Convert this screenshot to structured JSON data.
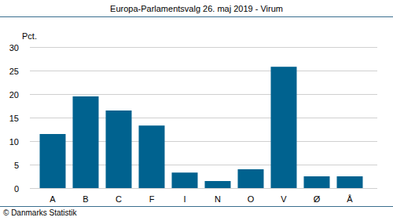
{
  "chart_data": {
    "type": "bar",
    "title": "Europa-Parlamentsvalg 26. maj 2019 - Virum",
    "ylabel": "Pct.",
    "source": "© Danmarks Statistik",
    "categories": [
      "A",
      "B",
      "C",
      "F",
      "I",
      "N",
      "O",
      "V",
      "Ø",
      "Å"
    ],
    "values": [
      11.5,
      19.5,
      16.5,
      13.3,
      3.3,
      1.5,
      4.0,
      25.8,
      2.5,
      2.5
    ],
    "color": "#00628f",
    "ylim": [
      0,
      30
    ],
    "yticks": [
      0,
      5,
      10,
      15,
      20,
      25,
      30
    ],
    "grid": true
  }
}
